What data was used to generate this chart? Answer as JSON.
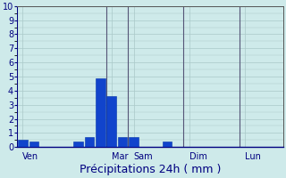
{
  "xlabel": "Précipitations 24h ( mm )",
  "background_color": "#ceeaea",
  "plot_background": "#ceeaea",
  "grid_color": "#aac8c8",
  "bar_color": "#1144cc",
  "bar_edge_color": "#0033aa",
  "ylim": [
    0,
    10
  ],
  "yticks": [
    0,
    1,
    2,
    3,
    4,
    5,
    6,
    7,
    8,
    9,
    10
  ],
  "day_labels": [
    "Ven",
    "Mar",
    "Sam",
    "Dim",
    "Lun"
  ],
  "day_tick_positions": [
    0,
    8,
    10,
    15,
    20
  ],
  "vline_positions": [
    0,
    8,
    10,
    15,
    20
  ],
  "bar_x": [
    0,
    1,
    5,
    6,
    7,
    8,
    9,
    10,
    13
  ],
  "bar_heights": [
    0.5,
    0.4,
    0.4,
    0.7,
    4.9,
    3.6,
    0.7,
    0.7,
    0.4
  ],
  "n_slots": 24,
  "xlabel_fontsize": 9,
  "tick_fontsize": 7,
  "text_color": "#000080",
  "axis_color": "#555555",
  "separator_color": "#555577",
  "separator_lw": 0.8
}
